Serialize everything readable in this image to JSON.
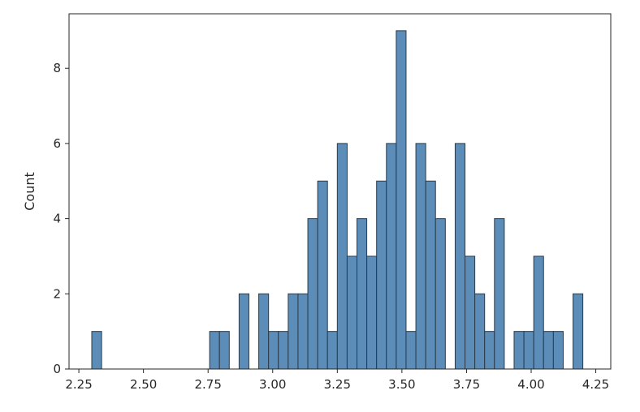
{
  "chart_data": {
    "type": "bar",
    "subtype": "histogram",
    "title": "",
    "xlabel": "",
    "ylabel": "Count",
    "xlim": [
      2.212,
      4.308
    ],
    "ylim": [
      0,
      9.45
    ],
    "x_ticks": [
      2.25,
      2.5,
      2.75,
      3.0,
      3.25,
      3.5,
      3.75,
      4.0,
      4.25
    ],
    "x_tick_labels": [
      "2.25",
      "2.50",
      "2.75",
      "3.00",
      "3.25",
      "3.50",
      "3.75",
      "4.00",
      "4.25"
    ],
    "y_ticks": [
      0,
      2,
      4,
      6,
      8
    ],
    "y_tick_labels": [
      "0",
      "2",
      "4",
      "6",
      "8"
    ],
    "bin_start": 2.3,
    "bin_width": 0.038,
    "counts": [
      1,
      0,
      0,
      0,
      0,
      0,
      0,
      0,
      0,
      0,
      0,
      0,
      1,
      1,
      0,
      2,
      0,
      2,
      1,
      1,
      2,
      2,
      4,
      5,
      1,
      6,
      3,
      4,
      3,
      5,
      6,
      9,
      1,
      6,
      5,
      4,
      0,
      6,
      3,
      2,
      1,
      4,
      0,
      1,
      1,
      3,
      1,
      1,
      0,
      2
    ],
    "bar_color": "#5b8db8",
    "edge_color": "#2a3b4a",
    "grid": false,
    "legend": "none"
  }
}
